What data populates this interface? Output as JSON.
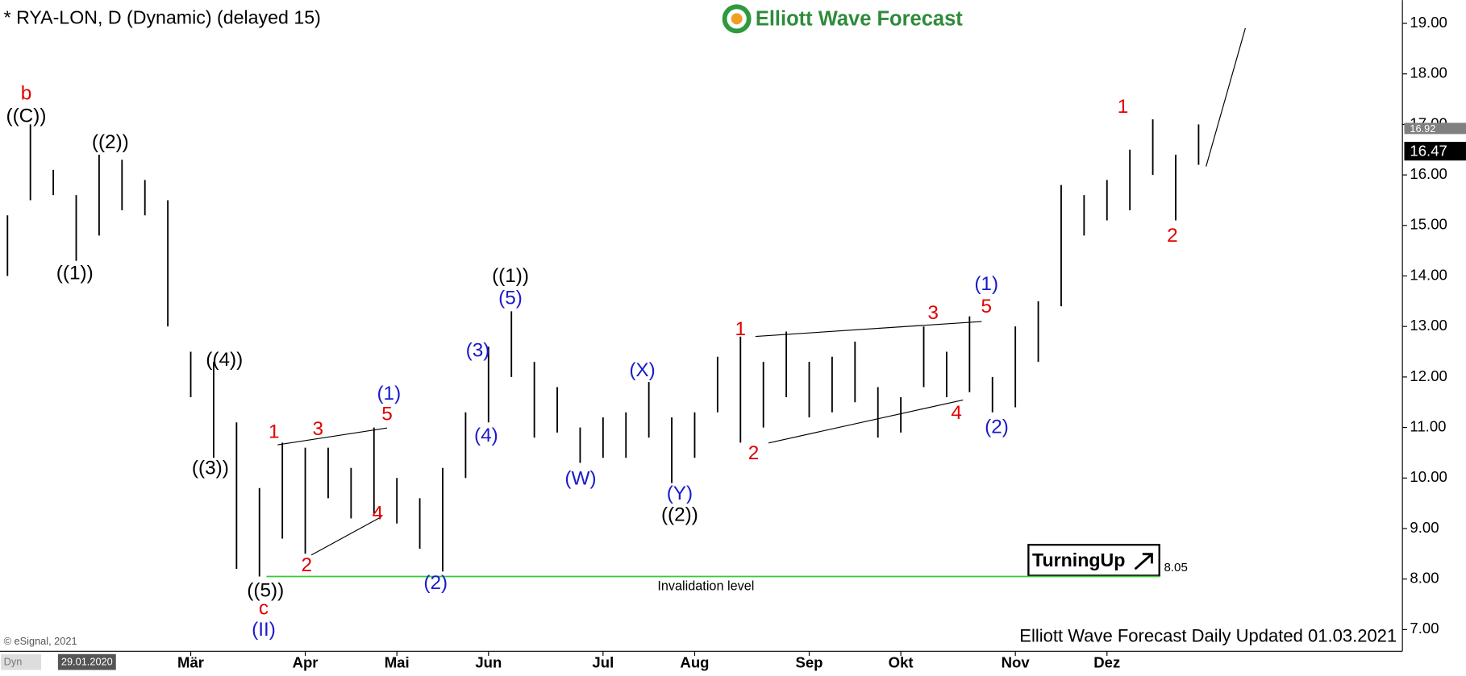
{
  "chart_data": {
    "type": "ohlc",
    "title": "* RYA-LON, D (Dynamic) (delayed 15)",
    "brand": "Elliott Wave Forecast",
    "footer": "Elliott Wave Forecast Daily Updated 01.03.2021",
    "copyright": "© eSignal, 2021",
    "start_date": "29.01.2020",
    "source_tag": "Dyn",
    "categories": [
      null,
      null,
      null,
      null,
      null,
      null,
      null,
      null,
      "Mär",
      null,
      null,
      null,
      null,
      "Apr",
      null,
      null,
      null,
      "Mai",
      null,
      null,
      null,
      "Jun",
      null,
      null,
      null,
      null,
      "Jul",
      null,
      null,
      null,
      "Aug",
      null,
      null,
      null,
      null,
      "Sep",
      null,
      null,
      null,
      "Okt",
      null,
      null,
      null,
      null,
      "Nov",
      null,
      null,
      null,
      "Dez",
      null,
      null,
      null,
      null
    ],
    "high": [
      15.2,
      17.0,
      16.1,
      15.6,
      16.4,
      16.3,
      15.9,
      15.5,
      12.5,
      12.3,
      11.1,
      9.8,
      10.7,
      10.6,
      10.6,
      10.2,
      11.0,
      10.0,
      9.6,
      10.2,
      11.3,
      12.6,
      13.3,
      12.3,
      11.8,
      11.0,
      11.2,
      11.3,
      11.9,
      11.2,
      11.3,
      12.4,
      12.8,
      12.3,
      12.9,
      12.3,
      12.4,
      12.7,
      11.8,
      11.6,
      13.0,
      12.5,
      13.2,
      12.0,
      13.0,
      13.5,
      15.8,
      15.6,
      15.9,
      16.5,
      17.1,
      16.4,
      17.0
    ],
    "low": [
      14.0,
      15.5,
      15.6,
      14.3,
      14.8,
      15.3,
      15.2,
      13.0,
      11.6,
      10.4,
      8.2,
      8.05,
      8.8,
      8.5,
      9.6,
      9.2,
      9.3,
      9.1,
      8.6,
      8.15,
      10.0,
      11.1,
      12.0,
      10.8,
      10.9,
      10.3,
      10.4,
      10.4,
      10.8,
      9.9,
      10.4,
      11.3,
      10.7,
      11.0,
      11.6,
      11.2,
      11.3,
      11.5,
      10.8,
      10.9,
      11.8,
      11.6,
      11.7,
      11.3,
      11.4,
      12.3,
      13.4,
      14.8,
      15.1,
      15.3,
      16.0,
      15.1,
      16.2
    ],
    "color": "#000000",
    "ylim": [
      6.57,
      19.46
    ],
    "yticks": [
      {
        "value": 7,
        "label": "7.00"
      },
      {
        "value": 8,
        "label": "8.00"
      },
      {
        "value": 9,
        "label": "9.00"
      },
      {
        "value": 10,
        "label": "10.00"
      },
      {
        "value": 11,
        "label": "11.00"
      },
      {
        "value": 12,
        "label": "12.00"
      },
      {
        "value": 13,
        "label": "13.00"
      },
      {
        "value": 14,
        "label": "14.00"
      },
      {
        "value": 15,
        "label": "15.00"
      },
      {
        "value": 16,
        "label": "16.00"
      },
      {
        "value": 17,
        "label": "17.00"
      },
      {
        "value": 18,
        "label": "18.00"
      },
      {
        "value": 19,
        "label": "19.00"
      }
    ],
    "grid": false,
    "invalidation": {
      "value": 8.05,
      "label": "Invalidation level",
      "color": "#33cc33"
    },
    "badge": "TurningUp",
    "price_tags": [
      {
        "value": 16.92,
        "color": "#808080"
      },
      {
        "value": 16.47,
        "color": "#000000"
      }
    ],
    "wave_labels": [
      {
        "text": "b",
        "color": "#e00000"
      },
      {
        "text": "((C))",
        "color": "#000000"
      },
      {
        "text": "((2))",
        "color": "#000000"
      },
      {
        "text": "((1))",
        "color": "#000000"
      },
      {
        "text": "((4))",
        "color": "#000000"
      },
      {
        "text": "((3))",
        "color": "#000000"
      },
      {
        "text": "((5))",
        "color": "#000000"
      },
      {
        "text": "c",
        "color": "#e00000"
      },
      {
        "text": "(II)",
        "color": "#1a1acc"
      },
      {
        "text": "1",
        "color": "#e00000"
      },
      {
        "text": "3",
        "color": "#e00000"
      },
      {
        "text": "2",
        "color": "#e00000"
      },
      {
        "text": "4",
        "color": "#e00000"
      },
      {
        "text": "(1)",
        "color": "#1a1acc"
      },
      {
        "text": "5",
        "color": "#e00000"
      },
      {
        "text": "(2)",
        "color": "#1a1acc"
      },
      {
        "text": "(3)",
        "color": "#1a1acc"
      },
      {
        "text": "(4)",
        "color": "#1a1acc"
      },
      {
        "text": "((1))",
        "color": "#000000"
      },
      {
        "text": "(5)",
        "color": "#1a1acc"
      },
      {
        "text": "(W)",
        "color": "#1a1acc"
      },
      {
        "text": "(X)",
        "color": "#1a1acc"
      },
      {
        "text": "(Y)",
        "color": "#1a1acc"
      },
      {
        "text": "((2))",
        "color": "#000000"
      },
      {
        "text": "1",
        "color": "#e00000"
      },
      {
        "text": "2",
        "color": "#e00000"
      },
      {
        "text": "3",
        "color": "#e00000"
      },
      {
        "text": "4",
        "color": "#e00000"
      },
      {
        "text": "(1)",
        "color": "#1a1acc"
      },
      {
        "text": "5",
        "color": "#e00000"
      },
      {
        "text": "(2)",
        "color": "#1a1acc"
      },
      {
        "text": "1",
        "color": "#e00000"
      },
      {
        "text": "2",
        "color": "#e00000"
      }
    ]
  }
}
